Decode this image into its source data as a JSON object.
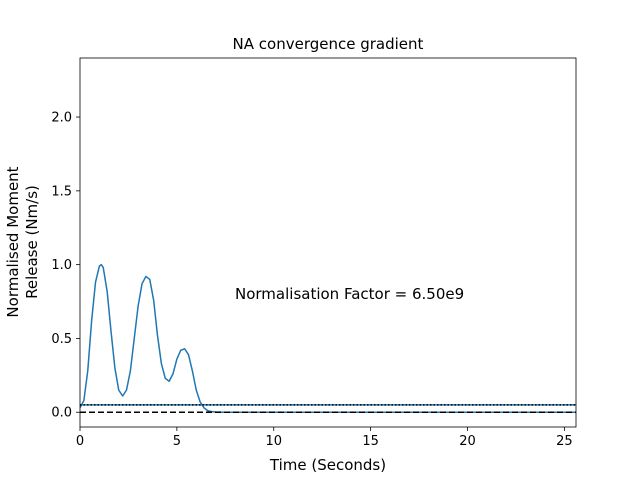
{
  "chart_data": {
    "type": "line",
    "title": "NA convergence gradient",
    "xlabel": "Time (Seconds)",
    "ylabel_lines": [
      "Normalised Moment",
      "Release (Nm/s)"
    ],
    "xlim": [
      0,
      25.6
    ],
    "ylim": [
      -0.1,
      2.4
    ],
    "xticks": [
      0,
      5,
      10,
      15,
      20,
      25
    ],
    "yticks": [
      0.0,
      0.5,
      1.0,
      1.5,
      2.0
    ],
    "xtick_labels": [
      "0",
      "5",
      "10",
      "15",
      "20",
      "25"
    ],
    "ytick_labels": [
      "0.0",
      "0.5",
      "1.0",
      "1.5",
      "2.0"
    ],
    "annotation": "Normalisation Factor = 6.50e9",
    "annotation_position_data": {
      "x": 8.0,
      "y": 0.8
    },
    "grid": false,
    "series": [
      {
        "style": "solid",
        "color": "#1f77b4",
        "x": [
          0.0,
          0.2,
          0.4,
          0.6,
          0.8,
          1.0,
          1.1,
          1.2,
          1.4,
          1.6,
          1.8,
          2.0,
          2.2,
          2.4,
          2.6,
          2.8,
          3.0,
          3.2,
          3.4,
          3.6,
          3.8,
          4.0,
          4.2,
          4.4,
          4.6,
          4.8,
          5.0,
          5.2,
          5.4,
          5.6,
          5.8,
          6.0,
          6.2,
          6.4,
          6.6,
          6.8,
          7.0,
          7.4,
          7.8,
          8.0,
          10.0,
          15.0,
          20.0,
          25.6
        ],
        "y": [
          0.03,
          0.08,
          0.28,
          0.62,
          0.88,
          0.99,
          1.0,
          0.98,
          0.82,
          0.55,
          0.3,
          0.15,
          0.11,
          0.15,
          0.28,
          0.5,
          0.72,
          0.87,
          0.92,
          0.9,
          0.76,
          0.52,
          0.33,
          0.23,
          0.21,
          0.26,
          0.36,
          0.42,
          0.43,
          0.39,
          0.28,
          0.15,
          0.07,
          0.03,
          0.01,
          0.004,
          0.002,
          0.0,
          0.0,
          0.0,
          0.0,
          0.0,
          0.0,
          0.0
        ]
      },
      {
        "style": "solid",
        "color": "#1f77b4",
        "x": [
          0,
          25.6
        ],
        "y": [
          0.05,
          0.05
        ]
      },
      {
        "style": "dotted",
        "color": "#000000",
        "x": [
          0,
          25.6
        ],
        "y": [
          0.05,
          0.05
        ]
      },
      {
        "style": "dashed",
        "color": "#000000",
        "x": [
          0,
          25.6
        ],
        "y": [
          0.0,
          0.0
        ]
      }
    ]
  }
}
